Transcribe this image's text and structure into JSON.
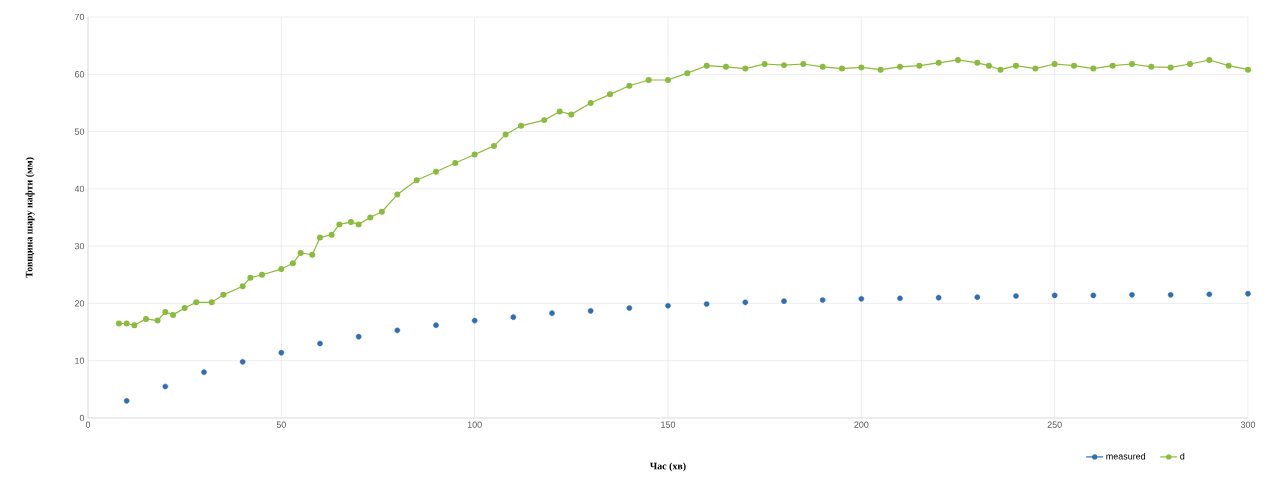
{
  "chart_data": {
    "type": "scatter",
    "xlabel": "Час (хв)",
    "ylabel": "Товщина шару нафти (мм)",
    "xlim": [
      0,
      300
    ],
    "ylim": [
      0,
      70
    ],
    "xticks": [
      0,
      50,
      100,
      150,
      200,
      250,
      300
    ],
    "yticks": [
      0,
      10,
      20,
      30,
      40,
      50,
      60,
      70
    ],
    "grid": true,
    "legend": "bottom right",
    "marker": "circle",
    "series": [
      {
        "name": "measured",
        "color": "#2f6db5",
        "x": [
          10,
          20,
          30,
          40,
          50,
          60,
          70,
          80,
          90,
          100,
          110,
          120,
          130,
          140,
          150,
          160,
          170,
          180,
          190,
          200,
          210,
          220,
          230,
          240,
          250,
          260,
          270,
          280,
          290,
          300
        ],
        "values": [
          3,
          5.5,
          8,
          9.8,
          11.4,
          13,
          14.2,
          15.3,
          16.2,
          17,
          17.6,
          18.3,
          18.7,
          19.2,
          19.6,
          19.9,
          20.2,
          20.4,
          20.6,
          20.8,
          20.9,
          21,
          21.1,
          21.3,
          21.4,
          21.4,
          21.5,
          21.5,
          21.6,
          21.7
        ]
      },
      {
        "name": "d",
        "type": "line",
        "color": "#8bbb3c",
        "x": [
          8,
          10,
          12,
          15,
          18,
          20,
          22,
          25,
          28,
          32,
          35,
          40,
          42,
          45,
          50,
          53,
          55,
          58,
          60,
          63,
          65,
          68,
          70,
          73,
          76,
          80,
          85,
          90,
          95,
          100,
          105,
          108,
          112,
          118,
          122,
          125,
          130,
          135,
          140,
          145,
          150,
          155,
          160,
          165,
          170,
          175,
          180,
          185,
          190,
          195,
          200,
          205,
          210,
          215,
          220,
          225,
          230,
          233,
          236,
          240,
          245,
          250,
          255,
          260,
          265,
          270,
          275,
          280,
          285,
          290,
          295,
          300
        ],
        "values": [
          16.5,
          16.5,
          16.2,
          17.3,
          17,
          18.5,
          18,
          19.2,
          20.2,
          20.2,
          21.5,
          23,
          24.5,
          25,
          26,
          27,
          28.8,
          28.5,
          31.5,
          32,
          33.8,
          34.2,
          33.8,
          35,
          36,
          39,
          41.5,
          43,
          44.5,
          46,
          47.5,
          49.5,
          51,
          52,
          53.5,
          53,
          55,
          56.5,
          58,
          59,
          59,
          60.2,
          61.5,
          61.3,
          61,
          61.8,
          61.6,
          61.8,
          61.3,
          61,
          61.2,
          60.8,
          61.3,
          61.5,
          62,
          62.5,
          62,
          61.5,
          60.8,
          61.5,
          61,
          61.8,
          61.5,
          61,
          61.5,
          61.8,
          61.3,
          61.2,
          61.8,
          62.5,
          61.5,
          60.8
        ]
      }
    ]
  }
}
